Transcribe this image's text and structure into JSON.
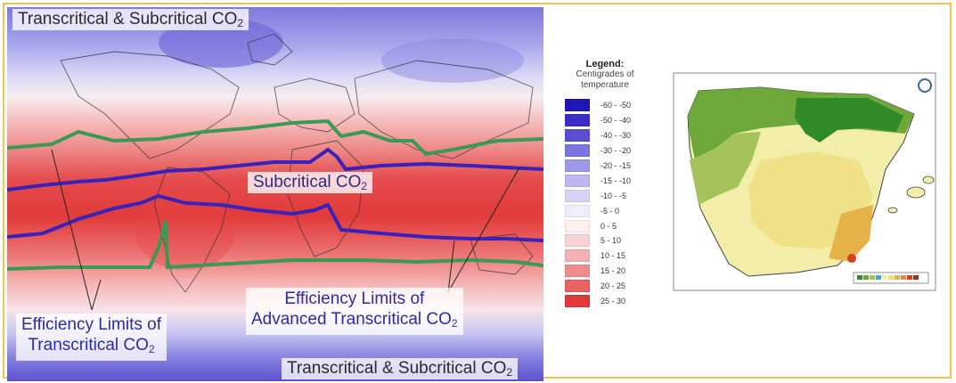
{
  "world_map": {
    "title_top": "Transcritical & Subcritical CO",
    "title_top_sub": "2",
    "title_bottom": "Transcritical & Subcritical CO",
    "title_bottom_sub": "2",
    "subcritical_label": "Subcritical CO",
    "subcritical_sub": "2",
    "efficiency_left_line1": "Efficiency Limits of",
    "efficiency_left_line2": "Transcritical CO",
    "efficiency_left_sub": "2",
    "efficiency_right_line1": "Efficiency Limits of",
    "efficiency_right_line2": "Advanced Transcritical CO",
    "efficiency_right_sub": "2",
    "line_colors": {
      "transcritical_limit": "#3a9a55",
      "subcritical_limit": "#3a22b8"
    }
  },
  "legend": {
    "title": "Legend:",
    "subtitle_line1": "Centigrades of",
    "subtitle_line2": "temperature",
    "items": [
      {
        "label": "-60 - -50",
        "color": "#1f16b8"
      },
      {
        "label": "-50 - -40",
        "color": "#3a2ec6"
      },
      {
        "label": "-40 - -30",
        "color": "#5a4fd2"
      },
      {
        "label": "-30 - -20",
        "color": "#7d74de"
      },
      {
        "label": "-20 - -15",
        "color": "#9e98e8"
      },
      {
        "label": "-15 - -10",
        "color": "#bbb7f0"
      },
      {
        "label": "-10 - -5",
        "color": "#d6d4f6"
      },
      {
        "label": "-5 - 0",
        "color": "#eeedfb"
      },
      {
        "label": "0 - 5",
        "color": "#fdf0f0"
      },
      {
        "label": "5 - 10",
        "color": "#f9d3d3"
      },
      {
        "label": "10 - 15",
        "color": "#f4b1b1"
      },
      {
        "label": "15 - 20",
        "color": "#ee8c8c"
      },
      {
        "label": "20 - 25",
        "color": "#e96262"
      },
      {
        "label": "25 - 30",
        "color": "#e23a3a"
      }
    ]
  },
  "iberia_map": {
    "colors": {
      "north_green": "#6fa83a",
      "dark_green": "#2f8a2a",
      "olive": "#a6c25a",
      "light_yellow": "#f2eeaa",
      "yellow": "#f0dc7a",
      "orange": "#e6b24a",
      "red_spot": "#d8401c"
    }
  }
}
